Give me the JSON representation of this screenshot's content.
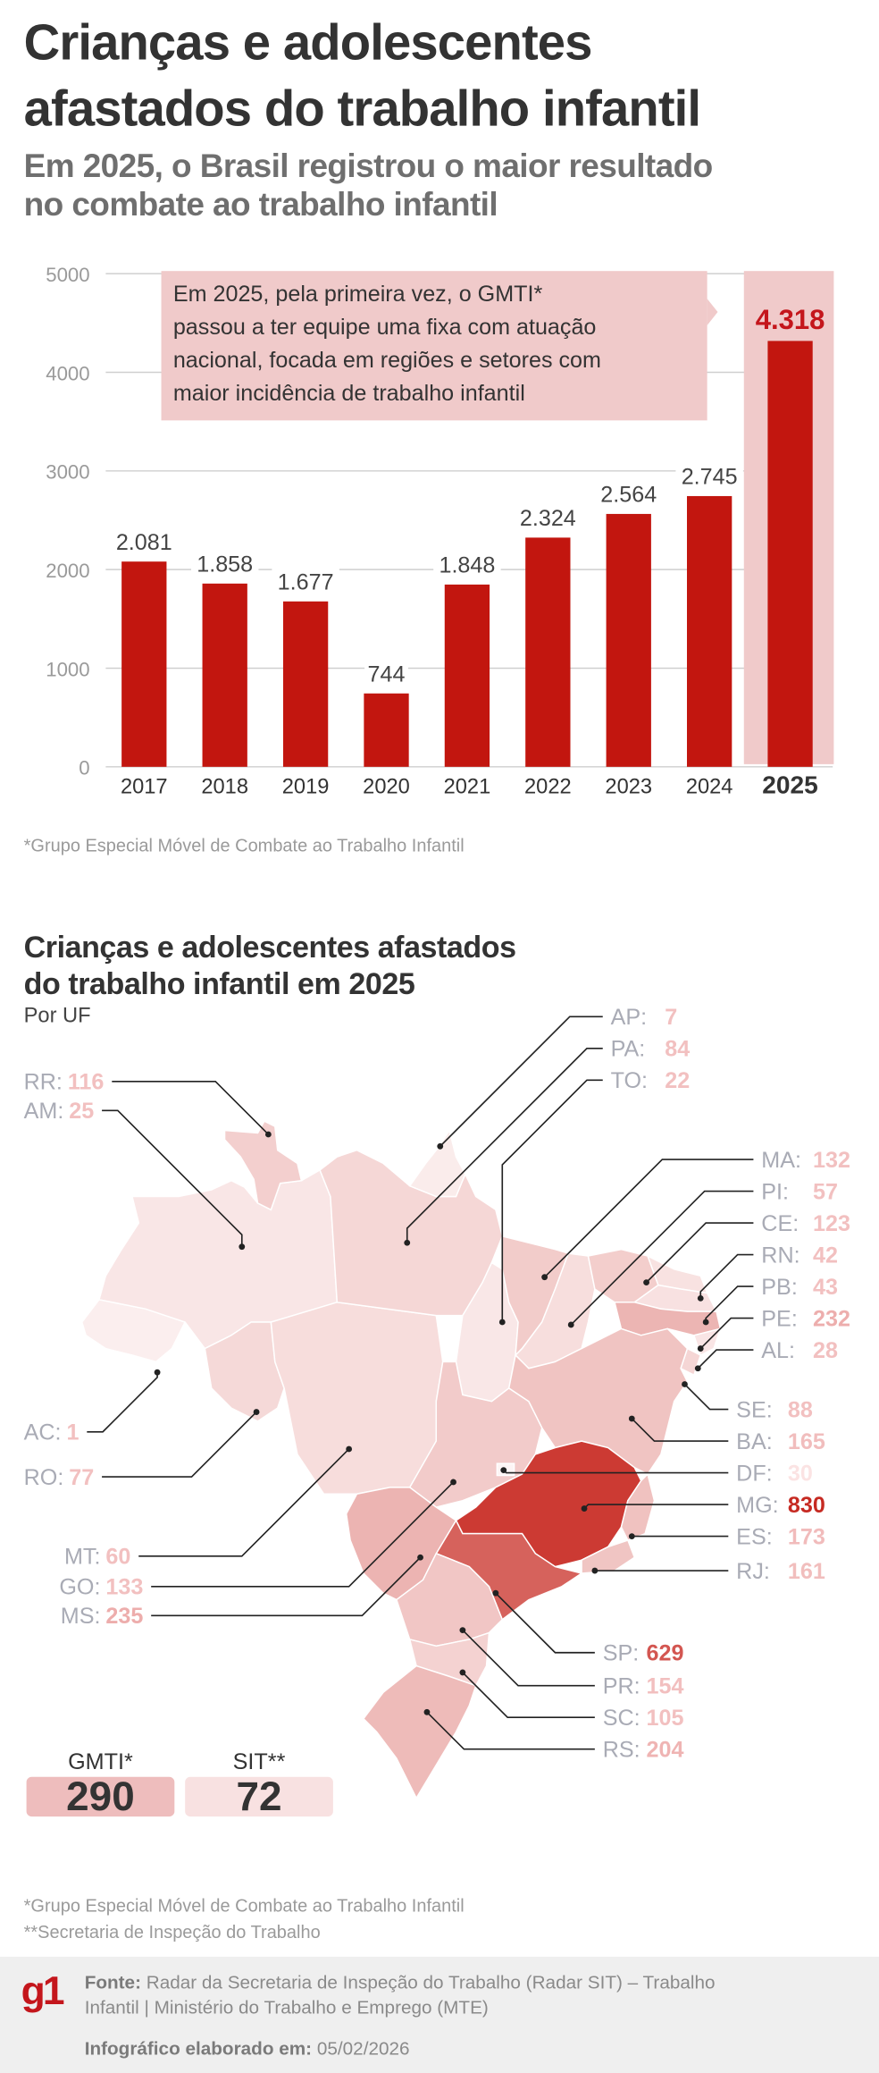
{
  "header": {
    "title_line1": "Crianças e adolescentes",
    "title_line2": "afastados do trabalho infantil",
    "subtitle_line1": "Em 2025, o Brasil registrou o maior resultado",
    "subtitle_line2": "no combate ao trabalho infantil"
  },
  "chart_data": {
    "type": "bar",
    "categories": [
      "2017",
      "2018",
      "2019",
      "2020",
      "2021",
      "2022",
      "2023",
      "2024",
      "2025"
    ],
    "values": [
      2081,
      1858,
      1677,
      744,
      1848,
      2324,
      2564,
      2745,
      4318
    ],
    "value_labels": [
      "2.081",
      "1.858",
      "1.677",
      "744",
      "1.848",
      "2.324",
      "2.564",
      "2.745",
      "4.318"
    ],
    "yticks": [
      "0",
      "1000",
      "2000",
      "3000",
      "4000",
      "5000"
    ],
    "ylim": [
      0,
      5000
    ],
    "grid": true,
    "highlight_category": "2025",
    "colors": {
      "bar": "#c2160f",
      "highlight_bg": "#f0caca",
      "highlight_label": "#c4161c"
    },
    "annotation": {
      "lines": [
        "Em 2025, pela primeira vez, o GMTI*",
        "passou a ter equipe uma fixa com atuação",
        "nacional, focada em regiões e setores com",
        "maior incidência de trabalho infantil"
      ]
    }
  },
  "chart_footnote": "*Grupo Especial Móvel de Combate ao Trabalho Infantil",
  "map": {
    "title_line1": "Crianças e adolescentes afastados",
    "title_line2": "do trabalho infantil em 2025",
    "subtitle": "Por UF",
    "states": [
      {
        "code": "RR",
        "value": 116
      },
      {
        "code": "AM",
        "value": 25
      },
      {
        "code": "AC",
        "value": 1
      },
      {
        "code": "RO",
        "value": 77
      },
      {
        "code": "MT",
        "value": 60
      },
      {
        "code": "GO",
        "value": 133
      },
      {
        "code": "MS",
        "value": 235
      },
      {
        "code": "AP",
        "value": 7
      },
      {
        "code": "PA",
        "value": 84
      },
      {
        "code": "TO",
        "value": 22
      },
      {
        "code": "MA",
        "value": 132
      },
      {
        "code": "PI",
        "value": 57
      },
      {
        "code": "CE",
        "value": 123
      },
      {
        "code": "RN",
        "value": 42
      },
      {
        "code": "PB",
        "value": 43
      },
      {
        "code": "PE",
        "value": 232
      },
      {
        "code": "AL",
        "value": 28
      },
      {
        "code": "SE",
        "value": 88
      },
      {
        "code": "BA",
        "value": 165
      },
      {
        "code": "DF",
        "value": 30
      },
      {
        "code": "MG",
        "value": 830
      },
      {
        "code": "ES",
        "value": 173
      },
      {
        "code": "RJ",
        "value": 161
      },
      {
        "code": "SP",
        "value": 629
      },
      {
        "code": "PR",
        "value": 154
      },
      {
        "code": "SC",
        "value": 105
      },
      {
        "code": "RS",
        "value": 204
      }
    ],
    "colors": {
      "low": "#fbeeee",
      "high": "#cc3a33",
      "code_label": "#a9abb5"
    }
  },
  "totals": {
    "gmti_label": "GMTI*",
    "gmti_value": "290",
    "gmti_color": "#eebdbd",
    "sit_label": "SIT**",
    "sit_value": "72",
    "sit_color": "#f8e1e1"
  },
  "footnotes": {
    "line1": "*Grupo Especial Móvel de Combate ao Trabalho Infantil",
    "line2": "**Secretaria de Inspeção do Trabalho"
  },
  "footer": {
    "logo": "g1",
    "source_label": "Fonte:",
    "source_line1": "Radar da Secretaria de Inspeção do Trabalho (Radar SIT) – Trabalho",
    "source_line2": "Infantil | Ministério do Trabalho e Emprego (MTE)",
    "date_label": "Infográfico elaborado em:",
    "date_value": "05/02/2026"
  }
}
